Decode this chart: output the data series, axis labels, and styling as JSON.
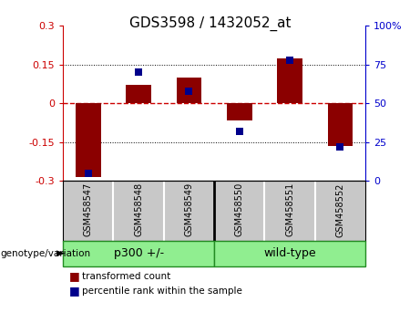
{
  "title": "GDS3598 / 1432052_at",
  "samples": [
    "GSM458547",
    "GSM458548",
    "GSM458549",
    "GSM458550",
    "GSM458551",
    "GSM458552"
  ],
  "red_values": [
    -0.285,
    0.07,
    0.1,
    -0.065,
    0.175,
    -0.165
  ],
  "blue_values_pct": [
    5,
    70,
    58,
    32,
    78,
    22
  ],
  "ylim_left": [
    -0.3,
    0.3
  ],
  "ylim_right": [
    0,
    100
  ],
  "yticks_left": [
    -0.3,
    -0.15,
    0,
    0.15,
    0.3
  ],
  "yticks_right": [
    0,
    25,
    50,
    75,
    100
  ],
  "left_tick_color": "#cc0000",
  "right_tick_color": "#0000cc",
  "zero_line_color": "#cc0000",
  "bar_color": "#8B0000",
  "dot_color": "#00008B",
  "bg_color": "white",
  "plot_bg_color": "white",
  "sample_label_bg": "#c8c8c8",
  "group_color": "#90EE90",
  "group_border_color": "#228B22",
  "legend_red_label": "transformed count",
  "legend_blue_label": "percentile rank within the sample",
  "genotype_label": "genotype/variation",
  "p300_label": "p300 +/-",
  "wildtype_label": "wild-type"
}
